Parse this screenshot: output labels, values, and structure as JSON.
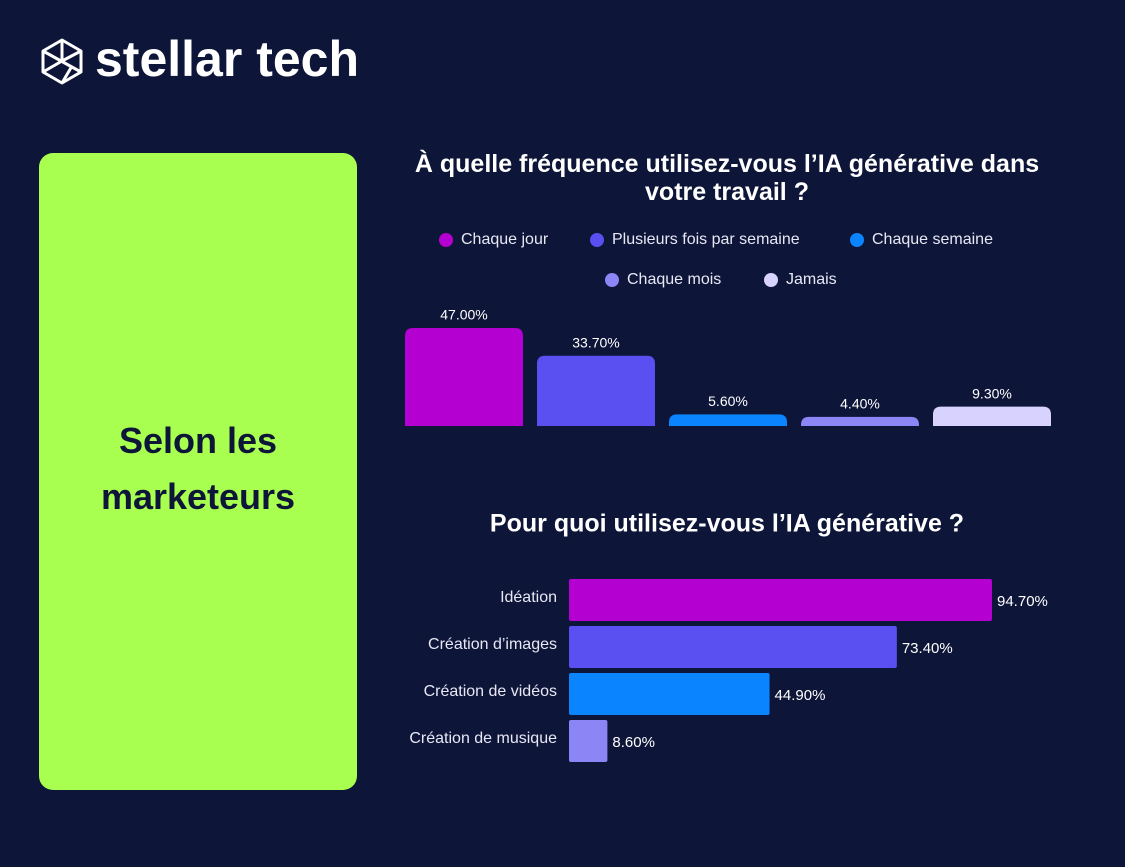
{
  "brand": "stellar tech",
  "panel": {
    "text": "Selon les marketeurs"
  },
  "chart_data": [
    {
      "type": "bar",
      "title": "À quelle fréquence utilisez-vous l’IA générative dans votre travail ?",
      "categories": [
        "Chaque jour",
        "Plusieurs fois par semaine",
        "Chaque semaine",
        "Chaque mois",
        "Jamais"
      ],
      "values": [
        47,
        33.7,
        5.6,
        4.4,
        9.3
      ],
      "value_labels": [
        "47.00%",
        "33.70%",
        "5.60%",
        "4.40%",
        "9.30%"
      ],
      "colors": [
        "#b400d0",
        "#5a4ff0",
        "#0a84ff",
        "#8b85f5",
        "#d8d2ff"
      ],
      "legend": true
    },
    {
      "type": "hbar",
      "title": "Pour quoi utilisez-vous l’IA générative ?",
      "categories": [
        "Idéation",
        "Création d’images",
        "Création de vidéos",
        "Création de musique"
      ],
      "values": [
        94.7,
        73.4,
        44.9,
        8.6
      ],
      "value_labels": [
        "94.70%",
        "73.40%",
        "44.90%",
        "8.60%"
      ],
      "colors": [
        "#b400d0",
        "#5a4ff0",
        "#0a84ff",
        "#8b85f5"
      ]
    }
  ]
}
